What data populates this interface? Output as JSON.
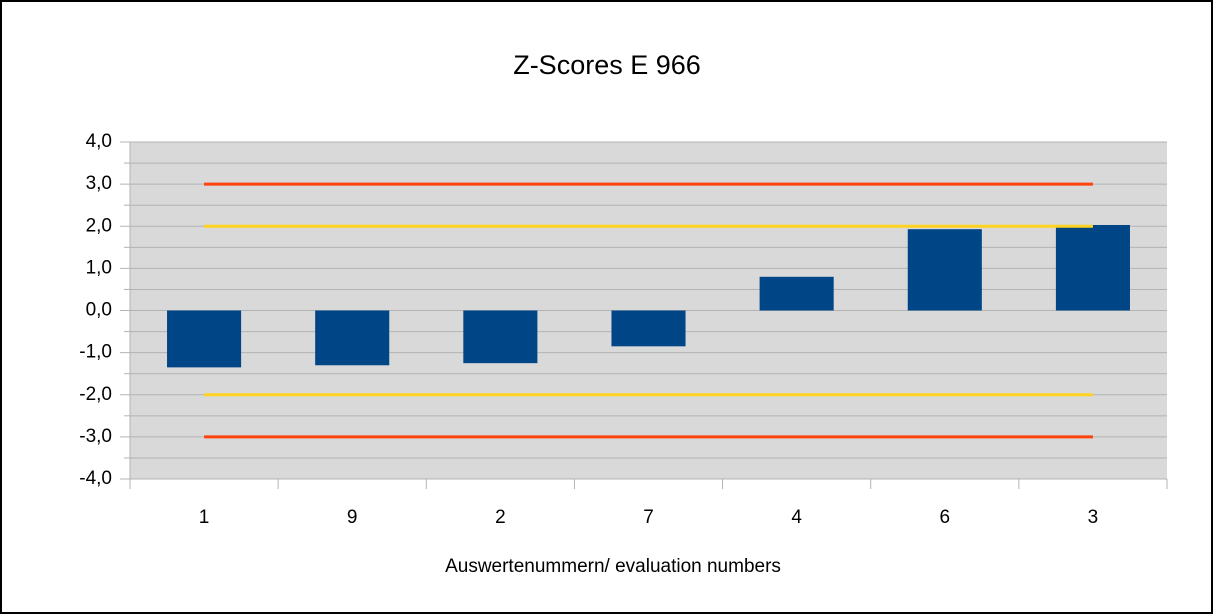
{
  "chart_data": {
    "type": "bar",
    "title": "Z-Scores E 966",
    "x_label": "Auswertenummern/ evaluation numbers",
    "categories": [
      "1",
      "9",
      "2",
      "7",
      "4",
      "6",
      "3"
    ],
    "values": [
      -1.35,
      -1.3,
      -1.25,
      -0.85,
      0.8,
      1.93,
      2.03
    ],
    "color": "#004586",
    "ylim": [
      -4,
      4
    ],
    "yticks": [
      {
        "value": -4,
        "label": "-4,0"
      },
      {
        "value": -3,
        "label": "-3,0"
      },
      {
        "value": -2,
        "label": "-2,0"
      },
      {
        "value": -1,
        "label": "-1,0"
      },
      {
        "value": 0,
        "label": "0,0"
      },
      {
        "value": 1,
        "label": "1,0"
      },
      {
        "value": 2,
        "label": "2,0"
      },
      {
        "value": 3,
        "label": "3,0"
      },
      {
        "value": 4,
        "label": "4,0"
      }
    ],
    "minor_yticks": [
      -3.5,
      -2.5,
      -1.5,
      -0.5,
      0.5,
      1.5,
      2.5,
      3.5
    ],
    "grid": true,
    "reference_lines": [
      {
        "value": 3,
        "color": "#ff420e"
      },
      {
        "value": 2,
        "color": "#ffd320"
      },
      {
        "value": -2,
        "color": "#ffd320"
      },
      {
        "value": -3,
        "color": "#ff420e"
      }
    ]
  }
}
